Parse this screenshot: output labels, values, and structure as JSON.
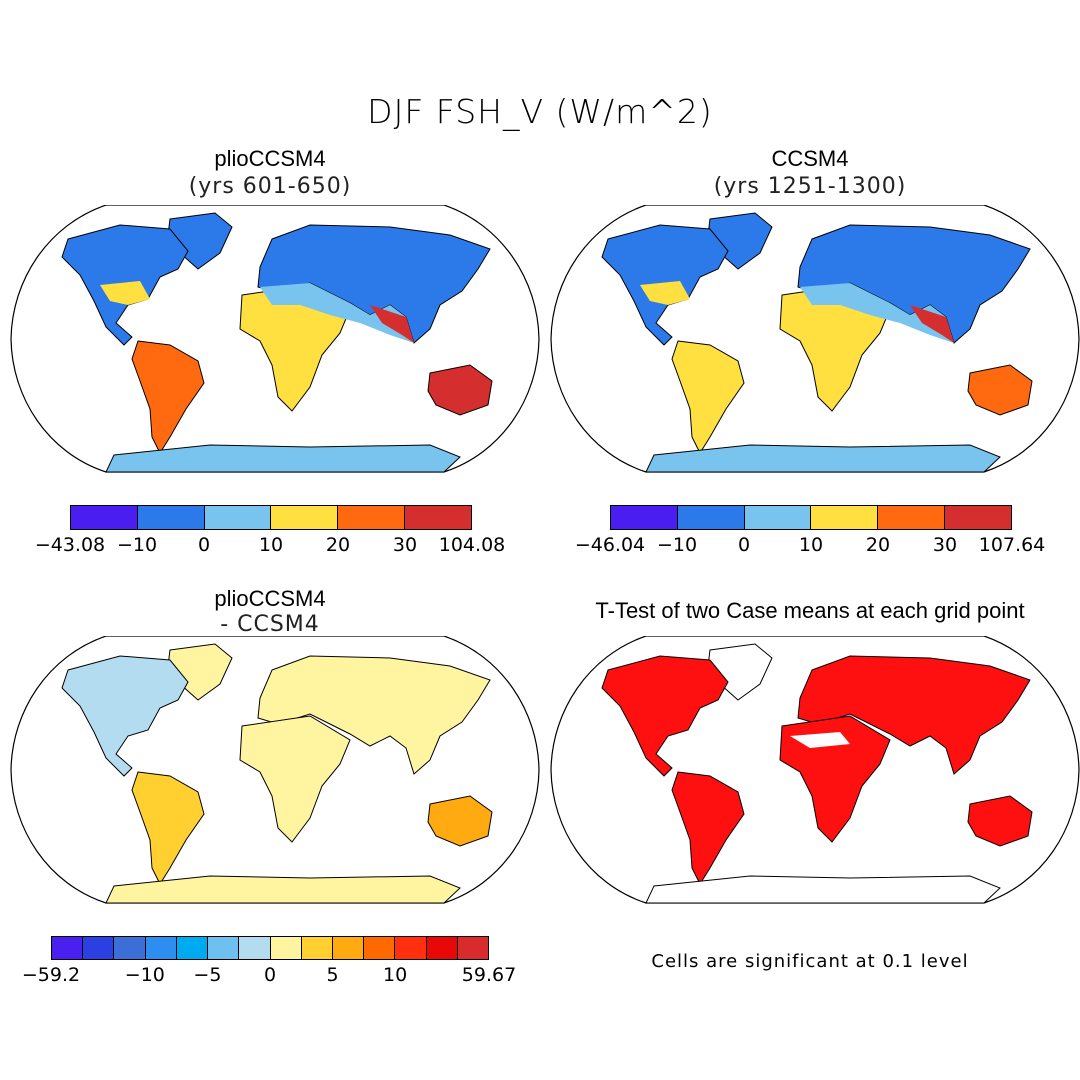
{
  "title": "DJF FSH_V (W/m^2)",
  "panels": [
    {
      "title": "plioCCSM4",
      "subtitle": "(yrs 601-650)"
    },
    {
      "title": "CCSM4",
      "subtitle": "(yrs 1251-1300)"
    },
    {
      "title": "plioCCSM4",
      "subtitle": "- CCSM4"
    },
    {
      "title": "T-Test of two Case means at each grid point",
      "subtitle": ""
    }
  ],
  "colorbars": [
    {
      "colors": [
        "#4a1ef0",
        "#2c7aea",
        "#78c4ef",
        "#ffe040",
        "#ff6a10",
        "#d52e2e"
      ],
      "ticks": [
        "-43.08",
        "-10",
        "0",
        "10",
        "20",
        "30",
        "104.08"
      ]
    },
    {
      "colors": [
        "#4a1ef0",
        "#2c7aea",
        "#78c4ef",
        "#ffe040",
        "#ff6a10",
        "#d52e2e"
      ],
      "ticks": [
        "-46.04",
        "-10",
        "0",
        "10",
        "20",
        "30",
        "107.64"
      ]
    },
    {
      "colors": [
        "#4a20f0",
        "#2a40e0",
        "#3c6ed8",
        "#2e8ef0",
        "#00aaf0",
        "#6ec0f0",
        "#b4dcf0",
        "#fff5a0",
        "#ffd030",
        "#ffaa10",
        "#ff6a00",
        "#ff3010",
        "#e80808",
        "#d82c2c"
      ],
      "ticks": [
        "-59.2",
        "-10",
        "-5",
        "0",
        "5",
        "10",
        "59.67"
      ]
    }
  ],
  "note": "Cells are significant at 0.1 level",
  "colors": {
    "land_pos": "#ff1010",
    "land_cold": "#2c7aea",
    "land_warm": "#ffe040",
    "ocean": "#ffffff"
  }
}
